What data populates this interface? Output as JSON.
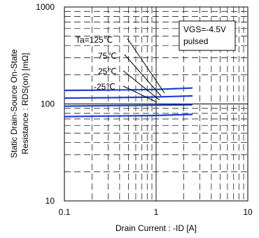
{
  "chart_data": {
    "type": "line",
    "xscale": "log",
    "yscale": "log",
    "xlim": [
      0.1,
      10
    ],
    "ylim": [
      10,
      1000
    ],
    "xlabel": "Drain Current : -ID [A]",
    "ylabel_lines": [
      "Static Drain-Source On-State",
      "Resistance : RDS(on) [mΩ]"
    ],
    "xticks": [
      {
        "value": 0.1,
        "label": "0.1"
      },
      {
        "value": 1,
        "label": "1"
      },
      {
        "value": 10,
        "label": "10"
      }
    ],
    "yticks": [
      {
        "value": 10,
        "label": "10"
      },
      {
        "value": 100,
        "label": "100"
      },
      {
        "value": 1000,
        "label": "1000"
      }
    ],
    "grid": true,
    "series_color": "#1f3fd6",
    "conditions": [
      "VGS=-4.5V",
      "pulsed"
    ],
    "series": [
      {
        "name": "Ta=125℃",
        "x": [
          0.1,
          0.3,
          1.0,
          2.5
        ],
        "y": [
          138,
          139,
          141,
          146
        ]
      },
      {
        "name": "75℃",
        "x": [
          0.1,
          0.3,
          1.0,
          2.5
        ],
        "y": [
          115,
          116,
          118,
          121
        ]
      },
      {
        "name": "25℃",
        "x": [
          0.1,
          0.3,
          1.0,
          2.5
        ],
        "y": [
          95,
          96,
          97,
          98
        ]
      },
      {
        "name": "-25℃",
        "x": [
          0.1,
          0.3,
          1.0,
          2.5
        ],
        "y": [
          74,
          75,
          76,
          78
        ]
      }
    ]
  }
}
